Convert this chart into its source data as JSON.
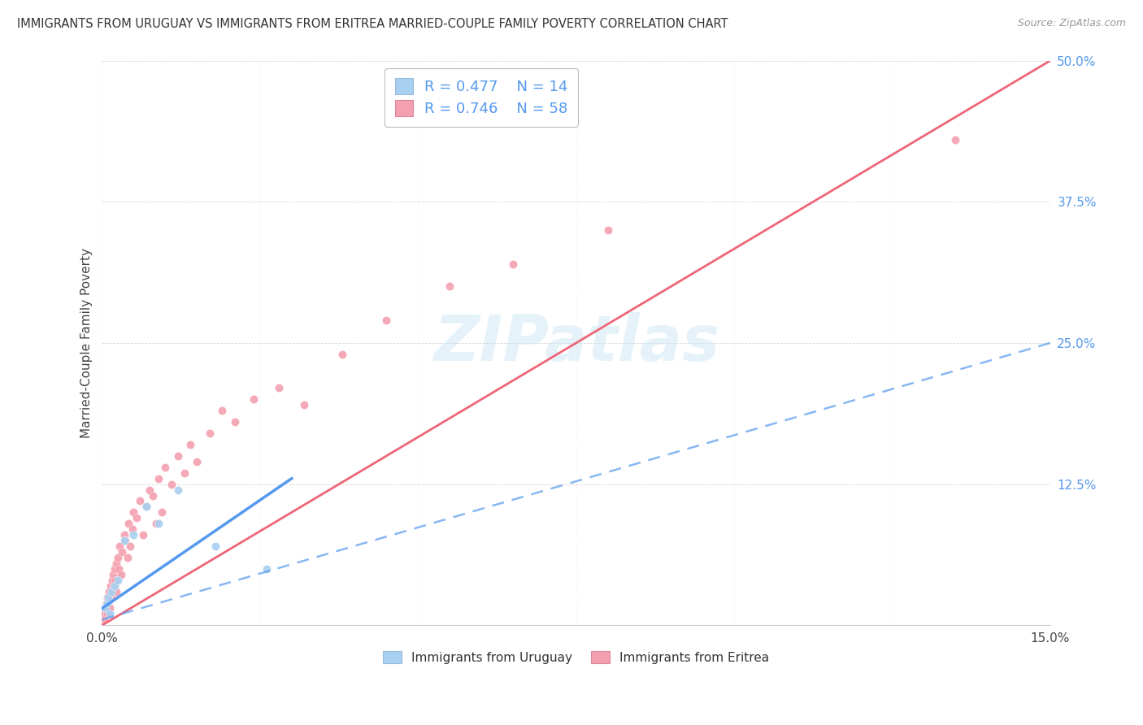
{
  "title": "IMMIGRANTS FROM URUGUAY VS IMMIGRANTS FROM ERITREA MARRIED-COUPLE FAMILY POVERTY CORRELATION CHART",
  "source": "Source: ZipAtlas.com",
  "ylabel": "Married-Couple Family Poverty",
  "xlim": [
    0.0,
    15.0
  ],
  "ylim": [
    0.0,
    50.0
  ],
  "xticks": [
    0.0,
    2.5,
    5.0,
    7.5,
    10.0,
    12.5,
    15.0
  ],
  "yticks": [
    0.0,
    12.5,
    25.0,
    37.5,
    50.0
  ],
  "xtick_labels": [
    "0.0%",
    "",
    "",
    "",
    "",
    "",
    "15.0%"
  ],
  "ytick_labels_right": [
    "",
    "12.5%",
    "25.0%",
    "37.5%",
    "50.0%"
  ],
  "uruguay_color": "#a8d0f0",
  "eritrea_color": "#f4a0b0",
  "uruguay_line_color": "#5599ee",
  "eritrea_line_color": "#ee6677",
  "R_uruguay": 0.477,
  "N_uruguay": 14,
  "R_eritrea": 0.746,
  "N_eritrea": 58,
  "watermark": "ZIPatlas",
  "legend_label_uruguay": "Immigrants from Uruguay",
  "legend_label_eritrea": "Immigrants from Eritrea",
  "uruguay_x": [
    0.05,
    0.08,
    0.1,
    0.12,
    0.15,
    0.2,
    0.25,
    0.35,
    0.5,
    0.7,
    0.9,
    1.2,
    1.8,
    2.6
  ],
  "uruguay_y": [
    1.5,
    2.0,
    2.5,
    1.0,
    3.0,
    3.5,
    4.0,
    7.5,
    8.0,
    10.5,
    9.0,
    12.0,
    7.0,
    5.0
  ],
  "eritrea_x": [
    0.03,
    0.05,
    0.06,
    0.07,
    0.08,
    0.09,
    0.1,
    0.11,
    0.12,
    0.13,
    0.15,
    0.16,
    0.17,
    0.18,
    0.19,
    0.2,
    0.21,
    0.22,
    0.23,
    0.25,
    0.27,
    0.28,
    0.3,
    0.32,
    0.35,
    0.37,
    0.4,
    0.42,
    0.45,
    0.48,
    0.5,
    0.55,
    0.6,
    0.65,
    0.7,
    0.75,
    0.8,
    0.85,
    0.9,
    0.95,
    1.0,
    1.1,
    1.2,
    1.3,
    1.4,
    1.5,
    1.7,
    1.9,
    2.1,
    2.4,
    2.8,
    3.2,
    3.8,
    4.5,
    5.5,
    6.5,
    8.0,
    13.5
  ],
  "eritrea_y": [
    0.5,
    1.0,
    1.5,
    2.0,
    1.0,
    2.5,
    2.0,
    3.0,
    1.5,
    3.5,
    2.5,
    4.0,
    3.0,
    4.5,
    3.5,
    5.0,
    4.0,
    5.5,
    3.0,
    6.0,
    5.0,
    7.0,
    4.5,
    6.5,
    8.0,
    7.5,
    6.0,
    9.0,
    7.0,
    8.5,
    10.0,
    9.5,
    11.0,
    8.0,
    10.5,
    12.0,
    11.5,
    9.0,
    13.0,
    10.0,
    14.0,
    12.5,
    15.0,
    13.5,
    16.0,
    14.5,
    17.0,
    19.0,
    18.0,
    20.0,
    21.0,
    19.5,
    24.0,
    27.0,
    30.0,
    32.0,
    35.0,
    43.0
  ],
  "eritrea_line_x0": 0.0,
  "eritrea_line_y0": 0.0,
  "eritrea_line_x1": 15.0,
  "eritrea_line_y1": 50.0,
  "uruguay_solid_x0": 0.0,
  "uruguay_solid_y0": 1.5,
  "uruguay_solid_x1": 3.0,
  "uruguay_solid_y1": 13.0,
  "uruguay_dash_x0": 0.0,
  "uruguay_dash_y0": 0.5,
  "uruguay_dash_x1": 15.0,
  "uruguay_dash_y1": 25.0
}
